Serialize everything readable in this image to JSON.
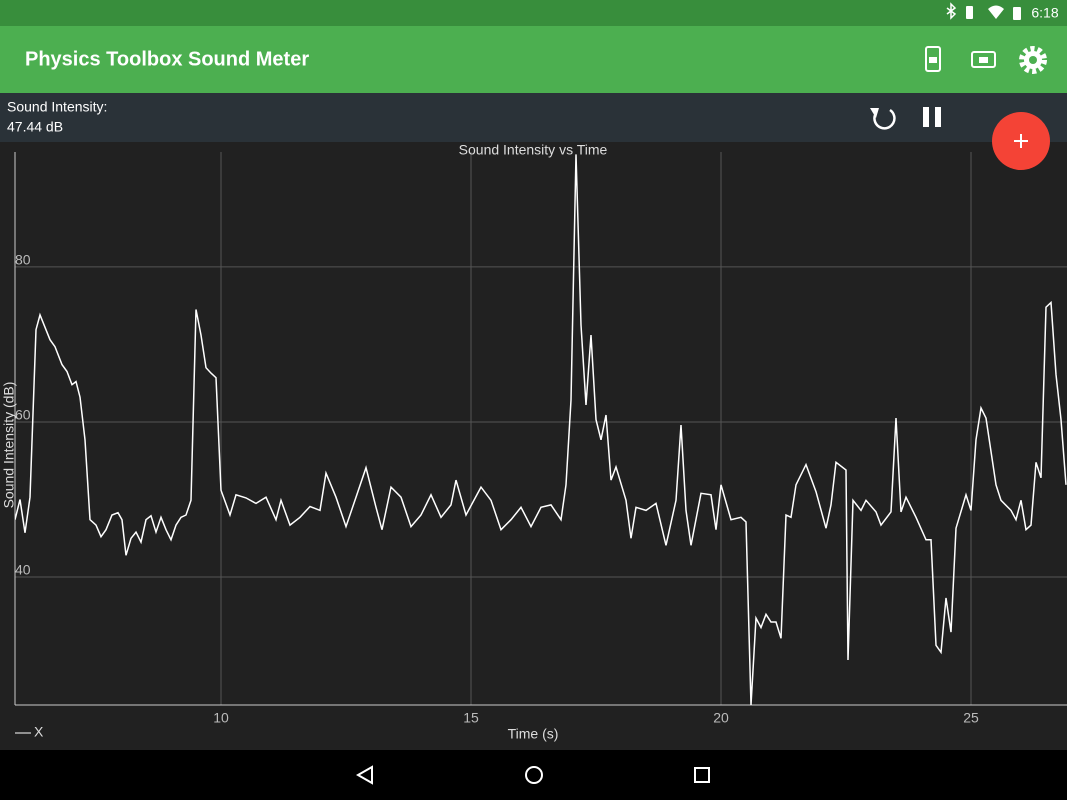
{
  "status_bar": {
    "time": "6:18"
  },
  "app_bar": {
    "title": "Physics Toolbox Sound Meter"
  },
  "readout": {
    "label": "Sound Intensity:",
    "value": "47.44 dB"
  },
  "chart_data": {
    "type": "line",
    "title": "Sound Intensity vs Time",
    "x_label": "Time (s)",
    "y_label": "Sound Intensity (dB)",
    "x": [
      5.88,
      5.98,
      6.08,
      6.18,
      6.3,
      6.38,
      6.58,
      6.68,
      6.82,
      6.92,
      7.02,
      7.1,
      7.18,
      7.28,
      7.38,
      7.5,
      7.6,
      7.7,
      7.82,
      7.94,
      8.02,
      8.1,
      8.2,
      8.3,
      8.4,
      8.5,
      8.6,
      8.7,
      8.8,
      8.9,
      9.0,
      9.1,
      9.2,
      9.3,
      9.4,
      9.5,
      9.6,
      9.7,
      9.8,
      9.9,
      10.0,
      10.18,
      10.3,
      10.5,
      10.7,
      10.9,
      11.1,
      11.2,
      11.38,
      11.58,
      11.78,
      11.98,
      12.1,
      12.3,
      12.5,
      12.7,
      12.9,
      13.1,
      13.22,
      13.4,
      13.6,
      13.8,
      14.0,
      14.2,
      14.4,
      14.6,
      14.7,
      14.9,
      15.2,
      15.4,
      15.6,
      15.8,
      16.0,
      16.2,
      16.4,
      16.6,
      16.8,
      16.9,
      17.0,
      17.1,
      17.2,
      17.3,
      17.4,
      17.5,
      17.6,
      17.7,
      17.8,
      17.9,
      18.1,
      18.2,
      18.3,
      18.5,
      18.7,
      18.9,
      19.1,
      19.2,
      19.3,
      19.4,
      19.6,
      19.8,
      19.9,
      20.0,
      20.2,
      20.4,
      20.5,
      20.6,
      20.7,
      20.8,
      20.9,
      21.0,
      21.1,
      21.2,
      21.3,
      21.4,
      21.5,
      21.7,
      21.9,
      22.1,
      22.2,
      22.3,
      22.5,
      22.54,
      22.64,
      22.8,
      22.9,
      23.1,
      23.2,
      23.4,
      23.5,
      23.6,
      23.7,
      23.9,
      24.1,
      24.2,
      24.3,
      24.4,
      24.5,
      24.6,
      24.7,
      24.9,
      25.0,
      25.1,
      25.2,
      25.3,
      25.5,
      25.6,
      25.8,
      25.9,
      26.0,
      26.1,
      26.2,
      26.3,
      26.4,
      26.5,
      26.6,
      26.7,
      26.8,
      26.9
    ],
    "series": [
      {
        "name": "X",
        "color": "#ffffff",
        "values": [
          47.4,
          50,
          45.7,
          50.3,
          71.9,
          73.8,
          70.6,
          69.7,
          67.4,
          66.5,
          64.8,
          65.2,
          63.2,
          57.7,
          47.4,
          46.7,
          45.2,
          46.1,
          48,
          48.3,
          47.4,
          42.8,
          45,
          45.8,
          44.5,
          47.4,
          47.9,
          45.8,
          47.7,
          46.1,
          44.8,
          46.7,
          47.7,
          48,
          49.9,
          74.5,
          71.2,
          67,
          66.3,
          65.7,
          51.2,
          48,
          50.6,
          50.2,
          49.5,
          50.3,
          47.4,
          49.9,
          46.7,
          47.7,
          49.1,
          48.6,
          53.4,
          50.3,
          46.5,
          50.3,
          54.1,
          49,
          46.1,
          51.6,
          50.3,
          46.5,
          48,
          50.6,
          47.7,
          49.3,
          52.5,
          48,
          51.6,
          49.9,
          46.1,
          47.4,
          49,
          46.5,
          49,
          49.3,
          47.4,
          51.9,
          62.8,
          94.5,
          72.5,
          62.2,
          71.2,
          60.3,
          57.7,
          60.9,
          52.5,
          54.2,
          49.9,
          45,
          49,
          48.6,
          49.5,
          44.1,
          49.9,
          59.6,
          48.6,
          44.1,
          50.8,
          50.6,
          46.1,
          51.9,
          47.4,
          47.7,
          47.1,
          23.5,
          34.7,
          33.5,
          35.2,
          34.2,
          34.2,
          32.1,
          48,
          47.7,
          51.9,
          54.5,
          51,
          46.3,
          49.3,
          54.8,
          53.8,
          29.3,
          49.9,
          48.6,
          49.9,
          48.4,
          46.7,
          48.4,
          60.5,
          48.4,
          50.3,
          47.7,
          44.8,
          44.8,
          31.2,
          30.3,
          37.3,
          32.9,
          46.3,
          50.6,
          48.6,
          57.7,
          61.8,
          60.5,
          51.9,
          49.9,
          48.6,
          47.4,
          49.9,
          46.1,
          46.7,
          54.8,
          52.8,
          74.8,
          75.4,
          66.1,
          60.3,
          51.9
        ]
      }
    ],
    "xlim": [
      5.88,
      26.92
    ],
    "ylim": [
      23.5,
      96.1
    ],
    "xticks": [
      10,
      15,
      20,
      25
    ],
    "yticks": [
      40,
      60,
      80
    ],
    "grid": true,
    "legend": "bottom-left"
  }
}
